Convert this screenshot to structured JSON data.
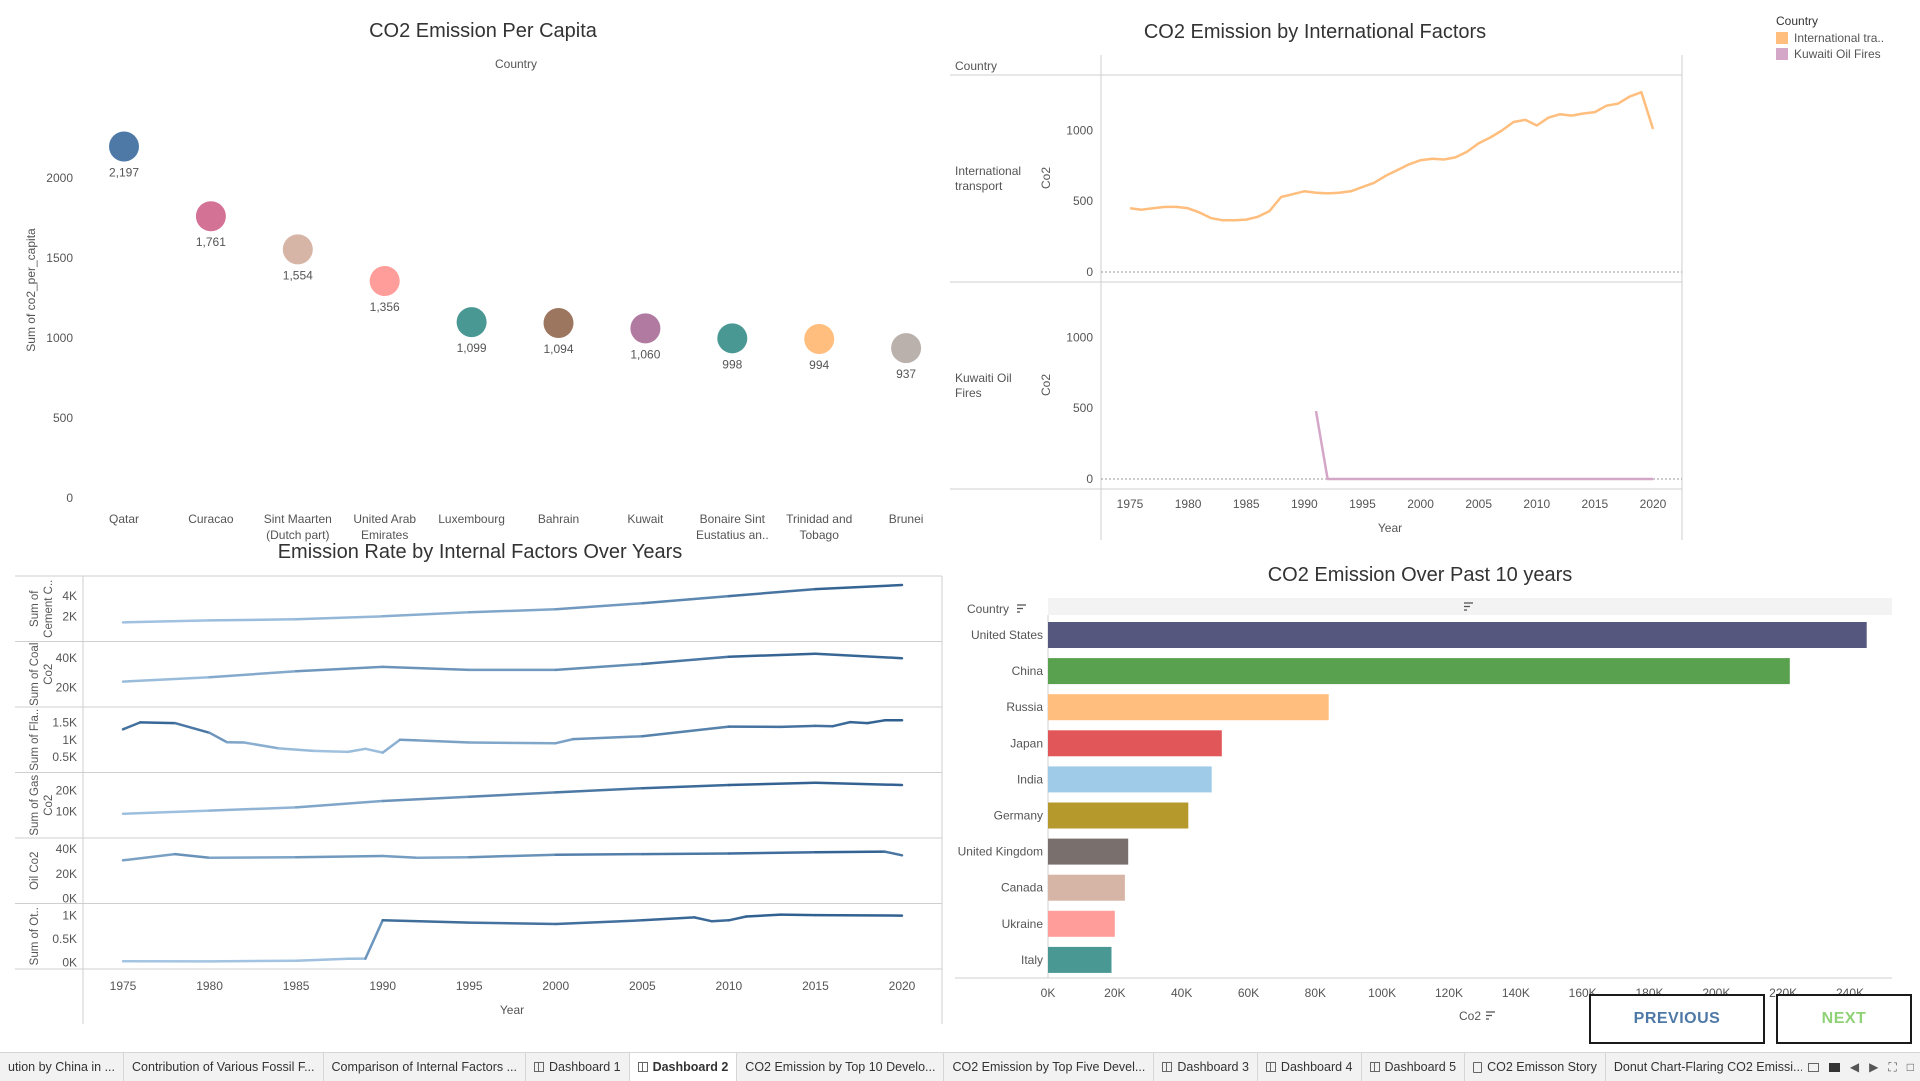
{
  "charts": {
    "per_capita": {
      "title": "CO2 Emission Per Capita",
      "header": "Country",
      "ylabel": "Sum of co2_per_capita",
      "y_ticks": [
        "0",
        "500",
        "1000",
        "1500",
        "2000"
      ]
    },
    "international": {
      "title": "CO2 Emission by International Factors",
      "header": "Country",
      "row1_label_a": "International",
      "row1_label_b": "transport",
      "row2_label_a": "Kuwaiti Oil",
      "row2_label_b": "Fires",
      "ylabel": "Co2",
      "y_ticks": [
        "0",
        "500",
        "1000"
      ],
      "x_ticks": [
        "1975",
        "1980",
        "1985",
        "1990",
        "1995",
        "2000",
        "2005",
        "2010",
        "2015",
        "2020"
      ],
      "xlabel": "Year"
    },
    "internal": {
      "title": "Emission Rate by Internal Factors Over Years",
      "x_ticks": [
        "1975",
        "1980",
        "1985",
        "1990",
        "1995",
        "2000",
        "2005",
        "2010",
        "2015",
        "2020"
      ],
      "xlabel": "Year",
      "rows": [
        {
          "label_a": "Sum of",
          "label_b": "Cement C..",
          "ticks": [
            "2K",
            "4K"
          ]
        },
        {
          "label_a": "Sum of Coal",
          "label_b": "Co2",
          "ticks": [
            "20K",
            "40K"
          ]
        },
        {
          "label_a": "Sum of Fla..",
          "label_b": "",
          "ticks": [
            "0.5K",
            "1K",
            "1.5K"
          ]
        },
        {
          "label_a": "Sum of Gas",
          "label_b": "Co2",
          "ticks": [
            "10K",
            "20K"
          ]
        },
        {
          "label_a": "Oil Co2",
          "label_b": "",
          "ticks": [
            "0K",
            "20K",
            "40K"
          ]
        },
        {
          "label_a": "Sum of Ot..",
          "label_b": "",
          "ticks": [
            "0K",
            "0.5K",
            "1K"
          ]
        }
      ]
    },
    "top10": {
      "title": "CO2 Emission Over Past 10 years",
      "header": "Country",
      "xlabel": "Co2",
      "x_ticks": [
        "0K",
        "20K",
        "40K",
        "60K",
        "80K",
        "100K",
        "120K",
        "140K",
        "160K",
        "180K",
        "200K",
        "220K",
        "240K"
      ]
    }
  },
  "chart_data": [
    {
      "type": "scatter",
      "title": "CO2 Emission Per Capita",
      "ylabel": "Sum of co2_per_capita",
      "ylim": [
        0,
        2300
      ],
      "categories": [
        "Qatar",
        "Curacao",
        "Sint Maarten (Dutch part)",
        "United Arab Emirates",
        "Luxembourg",
        "Bahrain",
        "Kuwait",
        "Bonaire Sint Eustatius an..",
        "Trinidad and Tobago",
        "Brunei"
      ],
      "category_lines": [
        [
          "Qatar"
        ],
        [
          "Curacao"
        ],
        [
          "Sint Maarten",
          "(Dutch part)"
        ],
        [
          "United Arab",
          "Emirates"
        ],
        [
          "Luxembourg"
        ],
        [
          "Bahrain"
        ],
        [
          "Kuwait"
        ],
        [
          "Bonaire Sint",
          "Eustatius an.."
        ],
        [
          "Trinidad and",
          "Tobago"
        ],
        [
          "Brunei"
        ]
      ],
      "values": [
        2197,
        1761,
        1554,
        1356,
        1099,
        1094,
        1060,
        998,
        994,
        937
      ],
      "data_labels": [
        "2,197",
        "1,761",
        "1,554",
        "1,356",
        "1,099",
        "1,094",
        "1,060",
        "998",
        "994",
        "937"
      ],
      "colors": [
        "#4e79a7",
        "#d37295",
        "#d7b5a6",
        "#ff9d9a",
        "#499894",
        "#9d7660",
        "#b07aa1",
        "#499894",
        "#ffbe7d",
        "#bab0ac"
      ]
    },
    {
      "type": "line",
      "title": "CO2 Emission by International Factors",
      "xlabel": "Year",
      "ylabel": "Co2",
      "ylim": [
        0,
        1300
      ],
      "legend": {
        "title": "Country",
        "placement": "top-right"
      },
      "series": [
        {
          "name": "International transport",
          "legend_label": "International tra..",
          "color": "#ffbe7d",
          "x": [
            1975,
            1976,
            1977,
            1978,
            1979,
            1980,
            1981,
            1982,
            1983,
            1984,
            1985,
            1986,
            1987,
            1988,
            1989,
            1990,
            1991,
            1992,
            1993,
            1994,
            1995,
            1996,
            1997,
            1998,
            1999,
            2000,
            2001,
            2002,
            2003,
            2004,
            2005,
            2006,
            2007,
            2008,
            2009,
            2010,
            2011,
            2012,
            2013,
            2014,
            2015,
            2016,
            2017,
            2018,
            2019,
            2020
          ],
          "y": [
            450,
            440,
            450,
            460,
            460,
            450,
            420,
            380,
            365,
            365,
            370,
            390,
            430,
            530,
            550,
            570,
            560,
            555,
            560,
            570,
            600,
            630,
            680,
            720,
            760,
            790,
            800,
            795,
            810,
            850,
            910,
            950,
            1000,
            1060,
            1075,
            1035,
            1090,
            1115,
            1105,
            1120,
            1130,
            1175,
            1190,
            1240,
            1270,
            1010
          ]
        },
        {
          "name": "Kuwaiti Oil Fires",
          "legend_label": "Kuwaiti Oil Fires",
          "color": "#d4a6c8",
          "x": [
            1991,
            1992,
            1995,
            2000,
            2005,
            2010,
            2015,
            2020
          ],
          "y": [
            480,
            0,
            0,
            0,
            0,
            0,
            0,
            0
          ]
        }
      ]
    },
    {
      "type": "line",
      "title": "Emission Rate by Internal Factors Over Years",
      "xlabel": "Year",
      "series": [
        {
          "name": "Sum of Cement C..",
          "color_low": "#a3c4e2",
          "color_high": "#2f5f8f",
          "ylim": [
            0,
            5500
          ],
          "x": [
            1975,
            1980,
            1985,
            1990,
            1995,
            2000,
            2005,
            2010,
            2015,
            2020
          ],
          "y": [
            1400,
            1600,
            1700,
            2000,
            2400,
            2700,
            3300,
            4000,
            4700,
            5100
          ]
        },
        {
          "name": "Sum of Coal Co2",
          "color_low": "#a3c4e2",
          "color_high": "#2f5f8f",
          "ylim": [
            10000,
            48000
          ],
          "x": [
            1975,
            1980,
            1985,
            1990,
            1995,
            2000,
            2005,
            2010,
            2015,
            2020
          ],
          "y": [
            24000,
            27000,
            31000,
            34000,
            32000,
            32000,
            36000,
            41000,
            43000,
            40000
          ]
        },
        {
          "name": "Sum of Fla..",
          "color_low": "#a3c4e2",
          "color_high": "#2f5f8f",
          "ylim": [
            200,
            1800
          ],
          "x": [
            1975,
            1976,
            1978,
            1980,
            1981,
            1982,
            1984,
            1986,
            1988,
            1989,
            1990,
            1991,
            1992,
            1995,
            2000,
            2001,
            2005,
            2010,
            2013,
            2015,
            2016,
            2017,
            2018,
            2019,
            2020
          ],
          "y": [
            1300,
            1500,
            1480,
            1200,
            930,
            920,
            750,
            680,
            650,
            740,
            630,
            1000,
            980,
            920,
            900,
            1020,
            1100,
            1380,
            1370,
            1400,
            1390,
            1510,
            1480,
            1560,
            1560
          ]
        },
        {
          "name": "Sum of Gas Co2",
          "color_low": "#a3c4e2",
          "color_high": "#2f5f8f",
          "ylim": [
            0,
            26000
          ],
          "x": [
            1975,
            1980,
            1985,
            1990,
            1995,
            2000,
            2005,
            2010,
            2015,
            2020
          ],
          "y": [
            9000,
            10500,
            12000,
            15000,
            17000,
            19000,
            21000,
            22500,
            23500,
            22500
          ]
        },
        {
          "name": "Oil Co2",
          "color_low": "#a3c4e2",
          "color_high": "#2f5f8f",
          "ylim": [
            0,
            45000
          ],
          "x": [
            1975,
            1978,
            1980,
            1985,
            1990,
            1992,
            1995,
            2000,
            2005,
            2010,
            2015,
            2019,
            2020
          ],
          "y": [
            31000,
            36000,
            33000,
            33500,
            34500,
            33000,
            33500,
            35500,
            36000,
            36500,
            37500,
            38000,
            35000
          ]
        },
        {
          "name": "Sum of Ot..",
          "color_low": "#a3c4e2",
          "color_high": "#2f5f8f",
          "ylim": [
            -30,
            1150
          ],
          "x": [
            1975,
            1980,
            1985,
            1988,
            1989,
            1990,
            1995,
            2000,
            2005,
            2008,
            2009,
            2010,
            2011,
            2013,
            2015,
            2020
          ],
          "y": [
            30,
            25,
            40,
            80,
            85,
            900,
            850,
            820,
            900,
            960,
            880,
            900,
            980,
            1020,
            1010,
            1000
          ]
        }
      ]
    },
    {
      "type": "bar",
      "title": "CO2 Emission Over Past 10 years",
      "xlabel": "Co2",
      "xlim": [
        0,
        250000
      ],
      "categories": [
        "United States",
        "China",
        "Russia",
        "Japan",
        "India",
        "Germany",
        "United Kingdom",
        "Canada",
        "Ukraine",
        "Italy"
      ],
      "values": [
        245000,
        222000,
        84000,
        52000,
        49000,
        42000,
        24000,
        23000,
        20000,
        19000
      ],
      "colors": [
        "#56577e",
        "#59a14f",
        "#ffbe7d",
        "#e15759",
        "#a0cbe8",
        "#b6992d",
        "#79706e",
        "#d7b5a6",
        "#ff9d9a",
        "#499894"
      ]
    }
  ],
  "nav": {
    "previous": "PREVIOUS",
    "next": "NEXT"
  },
  "tabs": [
    {
      "label": "ution by China in ...",
      "icon": "none",
      "active": false
    },
    {
      "label": "Contribution of Various Fossil F...",
      "icon": "none",
      "active": false
    },
    {
      "label": "Comparison of Internal Factors ...",
      "icon": "none",
      "active": false
    },
    {
      "label": "Dashboard 1",
      "icon": "dashboard",
      "active": false
    },
    {
      "label": "Dashboard 2",
      "icon": "dashboard",
      "active": true
    },
    {
      "label": "CO2 Emission by Top 10 Develo...",
      "icon": "none",
      "active": false
    },
    {
      "label": "CO2 Emission by Top Five Devel...",
      "icon": "none",
      "active": false
    },
    {
      "label": "Dashboard 3",
      "icon": "dashboard",
      "active": false
    },
    {
      "label": "Dashboard 4",
      "icon": "dashboard",
      "active": false
    },
    {
      "label": "Dashboard 5",
      "icon": "dashboard",
      "active": false
    },
    {
      "label": "CO2 Emisson Story",
      "icon": "story",
      "active": false
    },
    {
      "label": "Donut Chart-Flaring CO2 Emissi...",
      "icon": "none",
      "active": false
    }
  ],
  "tab_controls": [
    "grid-view-icon",
    "filmstrip-icon",
    "prev-sheet-icon",
    "next-sheet-icon",
    "fullscreen-icon",
    "present-icon"
  ]
}
